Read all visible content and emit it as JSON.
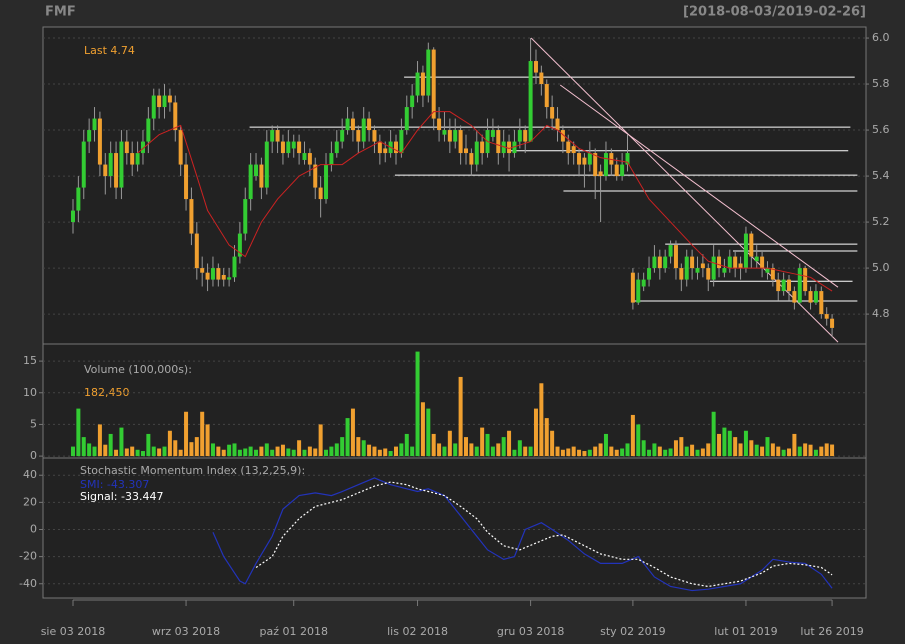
{
  "chart_data": {
    "type": "candlestick",
    "title": "FMF",
    "date_range": "[2018-08-03/2019-02-26]",
    "up_color": "#33cc33",
    "down_color": "#f0a030",
    "xlim": [
      -5.57,
      147.3
    ],
    "xticks": [
      {
        "value": 0,
        "label": "sie 03 2018"
      },
      {
        "value": 21,
        "label": "wrz 03 2018"
      },
      {
        "value": 41,
        "label": "paź 01 2018"
      },
      {
        "value": 64,
        "label": "lis 02 2018"
      },
      {
        "value": 85,
        "label": "gru 03 2018"
      },
      {
        "value": 104,
        "label": "sty 02 2019"
      },
      {
        "value": 125,
        "label": "lut 01 2019"
      },
      {
        "value": 141,
        "label": "lut 26 2019"
      }
    ],
    "ylim": [
      4.67,
      6.048
    ],
    "yticks": [
      4.8,
      {
        "value": 5,
        "label": "5.0"
      },
      5.2,
      5.4,
      5.6,
      5.8,
      {
        "value": 6,
        "label": "6.0"
      }
    ],
    "grid": true,
    "last_label": "Last 4.74",
    "ohlc": [
      [
        5.2,
        5.3,
        5.15,
        5.25
      ],
      [
        5.25,
        5.4,
        5.2,
        5.35
      ],
      [
        5.35,
        5.6,
        5.3,
        5.55
      ],
      [
        5.55,
        5.65,
        5.5,
        5.6
      ],
      [
        5.6,
        5.7,
        5.55,
        5.65
      ],
      [
        5.65,
        5.68,
        5.4,
        5.45
      ],
      [
        5.45,
        5.5,
        5.32,
        5.4
      ],
      [
        5.4,
        5.55,
        5.35,
        5.5
      ],
      [
        5.5,
        5.55,
        5.3,
        5.35
      ],
      [
        5.35,
        5.6,
        5.3,
        5.55
      ],
      [
        5.55,
        5.6,
        5.45,
        5.5
      ],
      [
        5.5,
        5.55,
        5.4,
        5.45
      ],
      [
        5.45,
        5.55,
        5.42,
        5.5
      ],
      [
        5.5,
        5.6,
        5.45,
        5.55
      ],
      [
        5.55,
        5.7,
        5.5,
        5.65
      ],
      [
        5.65,
        5.78,
        5.6,
        5.75
      ],
      [
        5.75,
        5.78,
        5.65,
        5.7
      ],
      [
        5.7,
        5.8,
        5.65,
        5.75
      ],
      [
        5.75,
        5.78,
        5.68,
        5.72
      ],
      [
        5.72,
        5.75,
        5.55,
        5.6
      ],
      [
        5.6,
        5.62,
        5.4,
        5.45
      ],
      [
        5.45,
        5.5,
        5.25,
        5.3
      ],
      [
        5.3,
        5.35,
        5.1,
        5.15
      ],
      [
        5.15,
        5.2,
        4.95,
        5.0
      ],
      [
        5.0,
        5.05,
        4.92,
        4.98
      ],
      [
        4.98,
        5.02,
        4.9,
        4.95
      ],
      [
        4.95,
        5.05,
        4.92,
        5.0
      ],
      [
        5.0,
        5.02,
        4.92,
        4.95
      ],
      [
        4.97,
        5.0,
        4.92,
        4.95
      ],
      [
        4.95,
        5.0,
        4.92,
        4.96
      ],
      [
        4.96,
        5.1,
        4.94,
        5.05
      ],
      [
        5.05,
        5.2,
        5.02,
        5.15
      ],
      [
        5.15,
        5.35,
        5.12,
        5.3
      ],
      [
        5.3,
        5.5,
        5.25,
        5.45
      ],
      [
        5.4,
        5.5,
        5.38,
        5.45
      ],
      [
        5.45,
        5.48,
        5.3,
        5.35
      ],
      [
        5.35,
        5.6,
        5.32,
        5.55
      ],
      [
        5.55,
        5.62,
        5.5,
        5.6
      ],
      [
        5.6,
        5.62,
        5.5,
        5.55
      ],
      [
        5.55,
        5.58,
        5.45,
        5.5
      ],
      [
        5.5,
        5.6,
        5.48,
        5.55
      ],
      [
        5.52,
        5.58,
        5.48,
        5.55
      ],
      [
        5.55,
        5.58,
        5.45,
        5.5
      ],
      [
        5.47,
        5.55,
        5.45,
        5.5
      ],
      [
        5.5,
        5.52,
        5.4,
        5.45
      ],
      [
        5.45,
        5.48,
        5.3,
        5.35
      ],
      [
        5.35,
        5.4,
        5.22,
        5.3
      ],
      [
        5.3,
        5.5,
        5.28,
        5.45
      ],
      [
        5.45,
        5.55,
        5.42,
        5.5
      ],
      [
        5.5,
        5.6,
        5.48,
        5.55
      ],
      [
        5.55,
        5.65,
        5.52,
        5.6
      ],
      [
        5.6,
        5.7,
        5.58,
        5.65
      ],
      [
        5.65,
        5.68,
        5.55,
        5.6
      ],
      [
        5.6,
        5.62,
        5.5,
        5.55
      ],
      [
        5.55,
        5.7,
        5.52,
        5.65
      ],
      [
        5.65,
        5.68,
        5.55,
        5.6
      ],
      [
        5.6,
        5.62,
        5.5,
        5.55
      ],
      [
        5.55,
        5.58,
        5.45,
        5.5
      ],
      [
        5.52,
        5.55,
        5.46,
        5.5
      ],
      [
        5.5,
        5.6,
        5.48,
        5.55
      ],
      [
        5.55,
        5.58,
        5.45,
        5.5
      ],
      [
        5.5,
        5.65,
        5.48,
        5.6
      ],
      [
        5.6,
        5.75,
        5.58,
        5.7
      ],
      [
        5.7,
        5.8,
        5.65,
        5.75
      ],
      [
        5.75,
        5.9,
        5.72,
        5.85
      ],
      [
        5.85,
        5.88,
        5.7,
        5.75
      ],
      [
        5.75,
        5.98,
        5.72,
        5.95
      ],
      [
        5.95,
        5.96,
        5.6,
        5.65
      ],
      [
        5.65,
        5.7,
        5.55,
        5.6
      ],
      [
        5.58,
        5.68,
        5.55,
        5.6
      ],
      [
        5.6,
        5.65,
        5.5,
        5.55
      ],
      [
        5.55,
        5.65,
        5.52,
        5.6
      ],
      [
        5.6,
        5.62,
        5.45,
        5.5
      ],
      [
        5.52,
        5.58,
        5.45,
        5.5
      ],
      [
        5.5,
        5.52,
        5.4,
        5.45
      ],
      [
        5.45,
        5.6,
        5.42,
        5.55
      ],
      [
        5.55,
        5.58,
        5.45,
        5.5
      ],
      [
        5.5,
        5.65,
        5.48,
        5.6
      ],
      [
        5.57,
        5.65,
        5.55,
        5.6
      ],
      [
        5.6,
        5.62,
        5.45,
        5.5
      ],
      [
        5.5,
        5.6,
        5.48,
        5.55
      ],
      [
        5.55,
        5.58,
        5.42,
        5.5
      ],
      [
        5.5,
        5.6,
        5.48,
        5.55
      ],
      [
        5.55,
        5.65,
        5.52,
        5.6
      ],
      [
        5.6,
        5.62,
        5.5,
        5.55
      ],
      [
        5.55,
        6.0,
        5.55,
        5.9
      ],
      [
        5.9,
        5.95,
        5.8,
        5.85
      ],
      [
        5.85,
        5.88,
        5.75,
        5.8
      ],
      [
        5.8,
        5.82,
        5.65,
        5.7
      ],
      [
        5.7,
        5.75,
        5.6,
        5.65
      ],
      [
        5.65,
        5.7,
        5.55,
        5.6
      ],
      [
        5.6,
        5.62,
        5.5,
        5.55
      ],
      [
        5.55,
        5.58,
        5.45,
        5.5
      ],
      [
        5.53,
        5.55,
        5.45,
        5.5
      ],
      [
        5.5,
        5.52,
        5.4,
        5.45
      ],
      [
        5.48,
        5.5,
        5.35,
        5.45
      ],
      [
        5.45,
        5.55,
        5.42,
        5.5
      ],
      [
        5.5,
        5.52,
        5.3,
        5.4
      ],
      [
        5.42,
        5.45,
        5.2,
        5.4
      ],
      [
        5.4,
        5.55,
        5.38,
        5.5
      ],
      [
        5.5,
        5.52,
        5.4,
        5.45
      ],
      [
        5.45,
        5.48,
        5.38,
        5.4
      ],
      [
        5.4,
        5.5,
        5.38,
        5.45
      ],
      [
        5.45,
        5.58,
        5.42,
        5.5
      ],
      [
        4.98,
        5.0,
        4.82,
        4.85
      ],
      [
        4.85,
        4.98,
        4.84,
        4.95
      ],
      [
        4.92,
        4.98,
        4.9,
        4.95
      ],
      [
        4.95,
        5.05,
        4.92,
        5.0
      ],
      [
        5.0,
        5.1,
        4.98,
        5.05
      ],
      [
        5.05,
        5.08,
        4.95,
        5.0
      ],
      [
        5.0,
        5.08,
        4.98,
        5.05
      ],
      [
        5.05,
        5.12,
        5.02,
        5.1
      ],
      [
        5.1,
        5.12,
        4.95,
        5.0
      ],
      [
        5.0,
        5.02,
        4.9,
        4.95
      ],
      [
        4.95,
        5.08,
        4.92,
        5.05
      ],
      [
        5.05,
        5.08,
        4.95,
        5.0
      ],
      [
        4.98,
        5.05,
        4.95,
        5.0
      ],
      [
        5.02,
        5.06,
        4.96,
        5.0
      ],
      [
        5.0,
        5.02,
        4.9,
        4.95
      ],
      [
        4.95,
        5.1,
        4.92,
        5.05
      ],
      [
        5.05,
        5.08,
        4.96,
        5.0
      ],
      [
        4.98,
        5.04,
        4.96,
        5.0
      ],
      [
        5.0,
        5.08,
        4.98,
        5.05
      ],
      [
        5.05,
        5.07,
        4.96,
        5.0
      ],
      [
        5.02,
        5.05,
        4.95,
        5.0
      ],
      [
        5.0,
        5.18,
        4.98,
        5.15
      ],
      [
        5.15,
        5.16,
        5.0,
        5.05
      ],
      [
        5.03,
        5.1,
        5.0,
        5.05
      ],
      [
        5.05,
        5.07,
        4.96,
        5.0
      ],
      [
        4.98,
        5.03,
        4.95,
        5.0
      ],
      [
        5.0,
        5.02,
        4.92,
        4.95
      ],
      [
        4.95,
        4.98,
        4.86,
        4.9
      ],
      [
        4.9,
        4.98,
        4.88,
        4.95
      ],
      [
        4.95,
        4.97,
        4.86,
        4.9
      ],
      [
        4.9,
        4.92,
        4.82,
        4.85
      ],
      [
        4.85,
        5.02,
        4.84,
        5.0
      ],
      [
        5.0,
        5.01,
        4.88,
        4.9
      ],
      [
        4.9,
        4.92,
        4.82,
        4.85
      ],
      [
        4.85,
        4.93,
        4.84,
        4.9
      ],
      [
        4.9,
        4.92,
        4.78,
        4.8
      ],
      [
        4.8,
        4.83,
        4.75,
        4.78
      ],
      [
        4.78,
        4.8,
        4.7,
        4.74
      ]
    ],
    "ma": {
      "color": "#cc2222",
      "x": [
        12,
        16,
        20,
        23,
        25,
        29,
        32,
        35,
        38,
        42,
        46,
        50,
        53,
        57,
        61,
        64,
        67,
        70,
        74,
        77,
        81,
        85,
        88,
        90,
        94,
        98,
        103,
        107,
        111,
        115,
        118,
        122,
        126,
        129,
        133,
        137,
        141
      ],
      "values": [
        5.5,
        5.58,
        5.62,
        5.4,
        5.25,
        5.1,
        5.05,
        5.2,
        5.3,
        5.4,
        5.45,
        5.45,
        5.5,
        5.55,
        5.5,
        5.6,
        5.68,
        5.68,
        5.62,
        5.55,
        5.52,
        5.55,
        5.62,
        5.6,
        5.52,
        5.48,
        5.46,
        5.3,
        5.2,
        5.1,
        5.03,
        5.0,
        5.0,
        5.0,
        4.98,
        4.96,
        4.9
      ]
    },
    "hlines": [
      {
        "y": 5.83,
        "x": [
          61.5,
          145.2
        ]
      },
      {
        "y": 5.613,
        "x": [
          32.8,
          144.4
        ]
      },
      {
        "y": 5.51,
        "x": [
          80.9,
          144
        ]
      },
      {
        "y": 5.404,
        "x": [
          59.8,
          145.7
        ]
      },
      {
        "y": 5.335,
        "x": [
          91.1,
          145.7
        ]
      },
      {
        "y": 5.104,
        "x": [
          110,
          145.7
        ]
      },
      {
        "y": 5.074,
        "x": [
          122.6,
          145.7
        ]
      },
      {
        "y": 4.943,
        "x": [
          118.3,
          144.8
        ]
      },
      {
        "y": 4.857,
        "x": [
          104.3,
          145.7
        ]
      }
    ],
    "trendlines": [
      {
        "x": [
          85.1,
          142.1
        ],
        "y": [
          6.0,
          4.678
        ]
      },
      {
        "x": [
          90.5,
          142.1
        ],
        "y": [
          5.796,
          4.917
        ]
      }
    ],
    "volume": {
      "title": "Volume (100,000s):",
      "last_label": "182,450",
      "ylim": [
        -0.3,
        17.7
      ],
      "yticks": [
        0,
        5,
        10,
        15
      ],
      "values": [
        1.5,
        7.5,
        3,
        2,
        1.5,
        5,
        1.8,
        3.5,
        1,
        4.5,
        1.2,
        1.5,
        1,
        0.8,
        3.5,
        1.5,
        1.2,
        1.5,
        4,
        2.5,
        1,
        7,
        2.2,
        3,
        7,
        5,
        2,
        1.5,
        1,
        1.8,
        2,
        1,
        1.2,
        1.5,
        1,
        1.5,
        2,
        1,
        1.5,
        1.8,
        1.2,
        1,
        2.5,
        1,
        1.5,
        1.2,
        5,
        1,
        1.5,
        2,
        3,
        6,
        7.5,
        3,
        2.5,
        1.8,
        1.5,
        1,
        1.2,
        0.8,
        1.5,
        2,
        3.5,
        1.5,
        16.5,
        8.5,
        7.5,
        3.5,
        2,
        1.5,
        4,
        2,
        12.5,
        3,
        2,
        1.5,
        4.5,
        3.5,
        1.5,
        2,
        3,
        4,
        1,
        2.5,
        1.5,
        1.5,
        7.5,
        11.5,
        6,
        4,
        1.5,
        1,
        1.2,
        1.5,
        1,
        0.8,
        1,
        1.5,
        2,
        3.5,
        1.5,
        1,
        1.2,
        2,
        6.5,
        5,
        2.5,
        1,
        2,
        1.5,
        1,
        1.2,
        2.5,
        3,
        1.5,
        1.8,
        1,
        1.2,
        2,
        7,
        3.5,
        4.5,
        4,
        3,
        2,
        4,
        2.5,
        1.8,
        1.5,
        3,
        2,
        1.5,
        1,
        1.2,
        3.5,
        1.5,
        2,
        1.8,
        1,
        1.5,
        2,
        1.8245
      ]
    },
    "smi": {
      "title": "Stochastic Momentum Index (13,2,25,9):",
      "ylim": [
        -50.5,
        52.7
      ],
      "yticks": [
        -40,
        -20,
        0,
        20,
        40
      ],
      "series": [
        {
          "name": "SMI: -43.307",
          "color": "#2233bb",
          "x": [
            26,
            28,
            31,
            32,
            34,
            37,
            39,
            42,
            45,
            48,
            50,
            53,
            56,
            59,
            62,
            64,
            66,
            69,
            72,
            75,
            77,
            80,
            82,
            84,
            87,
            89,
            92,
            95,
            98,
            102,
            105,
            108,
            111,
            115,
            118,
            124,
            128,
            130,
            133,
            136,
            139,
            141
          ],
          "values": [
            -2,
            -20,
            -38,
            -40,
            -25,
            -5,
            15,
            25,
            27,
            25,
            28,
            33,
            38,
            33,
            30,
            28,
            30,
            25,
            10,
            -5,
            -15,
            -22,
            -20,
            0,
            5,
            0,
            -8,
            -18,
            -25,
            -25,
            -20,
            -35,
            -42,
            -45,
            -44,
            -40,
            -30,
            -22,
            -24,
            -25,
            -33,
            -43.307
          ]
        },
        {
          "name": "Signal: -33.447",
          "color": "#ffffff",
          "dashed": true,
          "x": [
            34,
            37,
            39,
            42,
            45,
            48,
            50,
            53,
            56,
            59,
            62,
            64,
            66,
            69,
            72,
            75,
            77,
            80,
            83,
            86,
            89,
            91,
            94,
            98,
            102,
            105,
            108,
            111,
            115,
            118,
            124,
            128,
            130,
            133,
            136,
            139,
            141
          ],
          "values": [
            -28,
            -20,
            -5,
            8,
            17,
            20,
            22,
            27,
            32,
            35,
            33,
            30,
            28,
            25,
            17,
            8,
            -2,
            -12,
            -15,
            -10,
            -5,
            -4,
            -10,
            -18,
            -22,
            -22,
            -28,
            -35,
            -40,
            -42,
            -38,
            -32,
            -27,
            -25,
            -26,
            -28,
            -33.447
          ]
        }
      ]
    }
  }
}
